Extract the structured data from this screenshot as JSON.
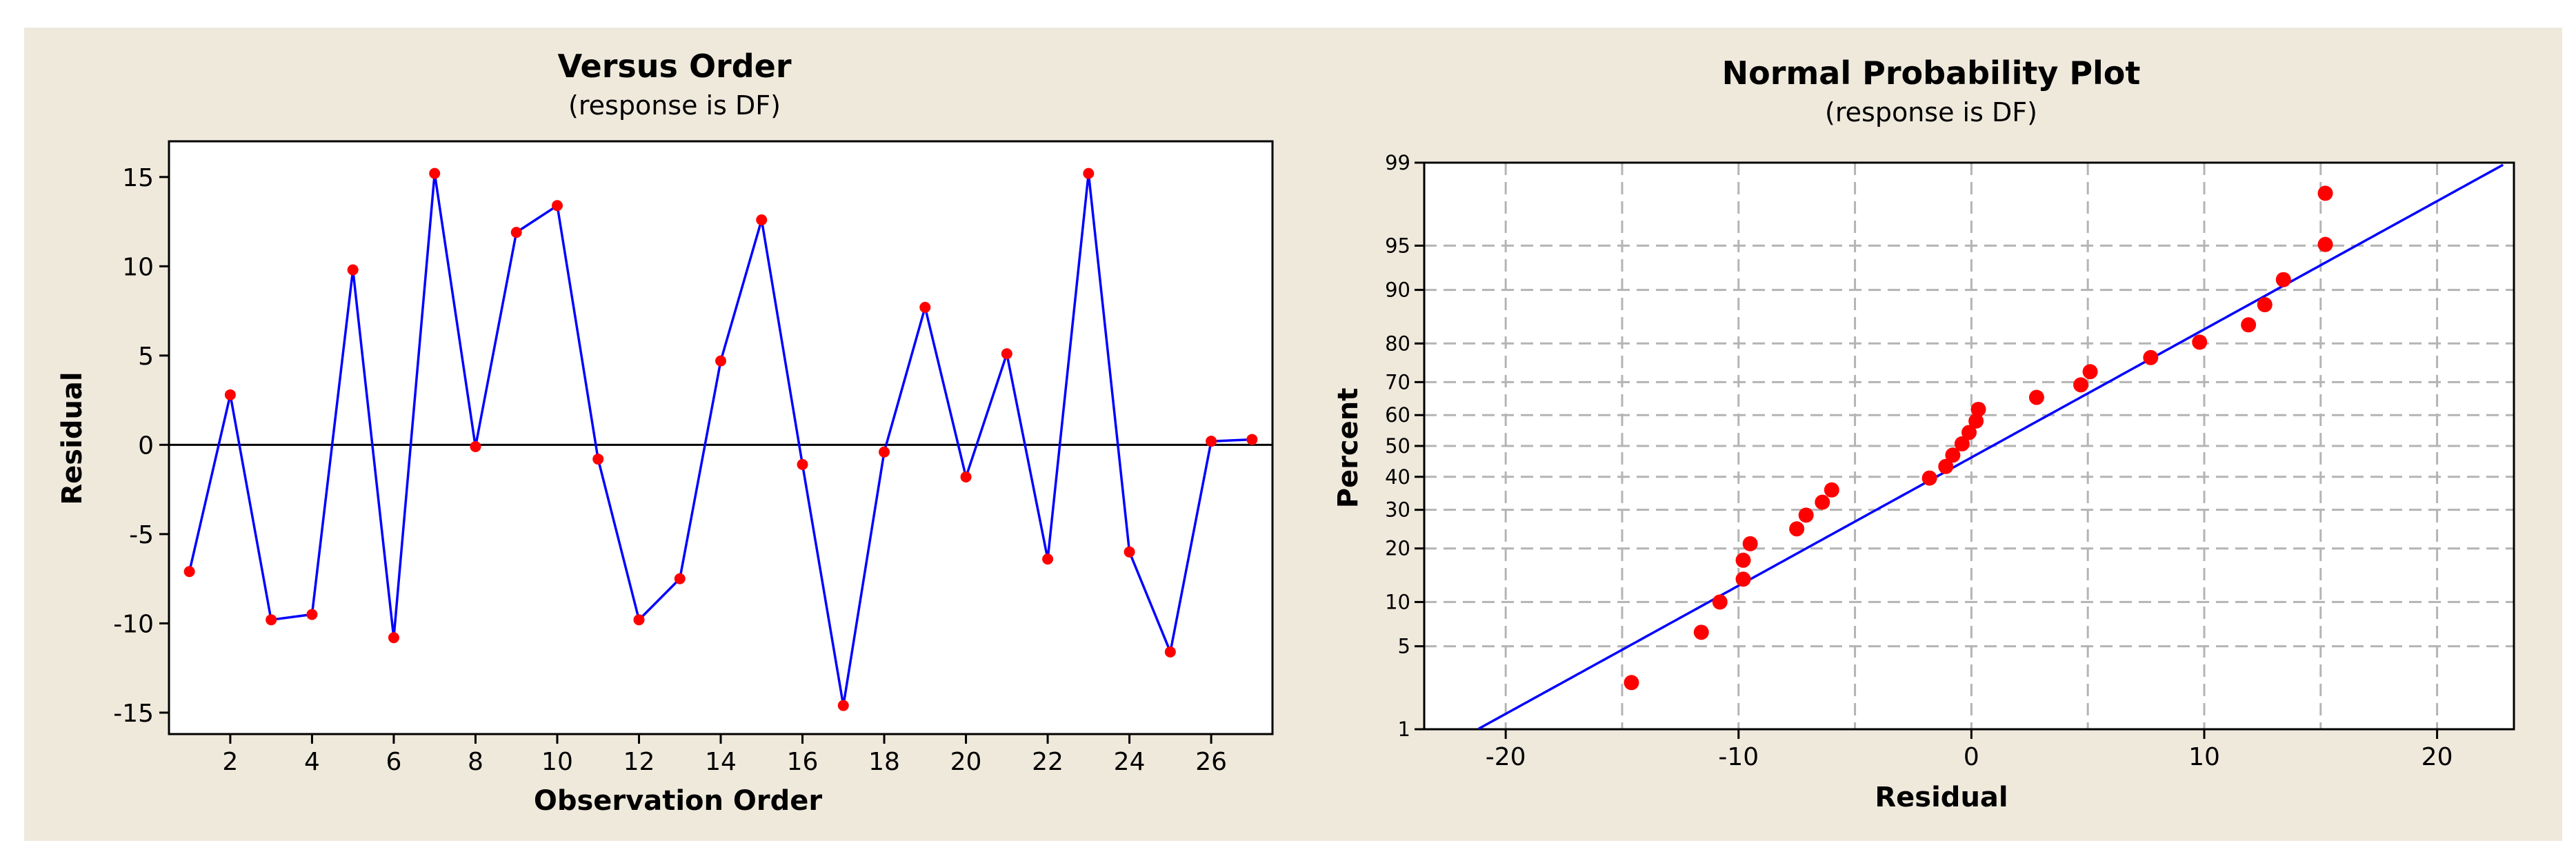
{
  "chart_data": [
    {
      "type": "line",
      "title": "Versus Order",
      "subtitle": "(response is DF)",
      "xlabel": "Observation Order",
      "ylabel": "Residual",
      "xlim": [
        0.5,
        27.5
      ],
      "ylim": [
        -16.2,
        17
      ],
      "xticks": [
        2,
        4,
        6,
        8,
        10,
        12,
        14,
        16,
        18,
        20,
        22,
        24,
        26
      ],
      "yticks": [
        -15,
        -10,
        -5,
        0,
        5,
        10,
        15
      ],
      "reference_line_y": 0,
      "grid": false,
      "colors": {
        "line": "#0000ff",
        "points": "#ff0000",
        "reference": "#000000"
      },
      "x": [
        1,
        2,
        3,
        4,
        5,
        6,
        7,
        8,
        9,
        10,
        11,
        12,
        13,
        14,
        15,
        16,
        17,
        18,
        19,
        20,
        21,
        22,
        23,
        24,
        25,
        26,
        27
      ],
      "values": [
        -7.1,
        2.8,
        -9.8,
        -9.5,
        9.8,
        -10.8,
        15.2,
        -0.1,
        11.9,
        13.4,
        -0.8,
        -9.8,
        -7.5,
        4.7,
        12.6,
        -1.1,
        -14.6,
        -0.4,
        7.7,
        -1.8,
        5.1,
        -6.4,
        15.2,
        -6.0,
        -11.6,
        0.2,
        0.3
      ]
    },
    {
      "type": "scatter",
      "title": "Normal Probability Plot",
      "subtitle": "(response is DF)",
      "xlabel": "Residual",
      "ylabel": "Percent",
      "xlim": [
        -23.5,
        23.3
      ],
      "ylim": [
        1,
        99
      ],
      "yscale": "normal-probability",
      "xticks": [
        -20,
        -10,
        0,
        10,
        20
      ],
      "yticks": [
        1,
        5,
        10,
        20,
        30,
        40,
        50,
        60,
        70,
        80,
        90,
        95,
        99
      ],
      "grid": true,
      "colors": {
        "line": "#0000ff",
        "points": "#ff0000",
        "grid": "#b4b4b4"
      },
      "fit_line": {
        "mean": 0.9,
        "sd": 9.5
      },
      "x": [
        -14.6,
        -11.6,
        -10.8,
        -9.8,
        -9.8,
        -9.5,
        -7.5,
        -7.1,
        -6.4,
        -6.0,
        -1.8,
        -1.1,
        -0.8,
        -0.4,
        -0.1,
        0.2,
        0.3,
        2.8,
        4.7,
        5.1,
        7.7,
        9.8,
        11.9,
        12.6,
        13.4,
        15.2,
        15.2
      ],
      "y": [
        2.6,
        6.3,
        10.0,
        13.7,
        17.4,
        21.1,
        24.8,
        28.5,
        32.2,
        35.9,
        39.6,
        43.3,
        47.0,
        50.7,
        54.4,
        58.1,
        61.8,
        65.5,
        69.2,
        72.9,
        76.6,
        80.3,
        84.0,
        87.7,
        91.4,
        95.1,
        98.1
      ]
    }
  ]
}
